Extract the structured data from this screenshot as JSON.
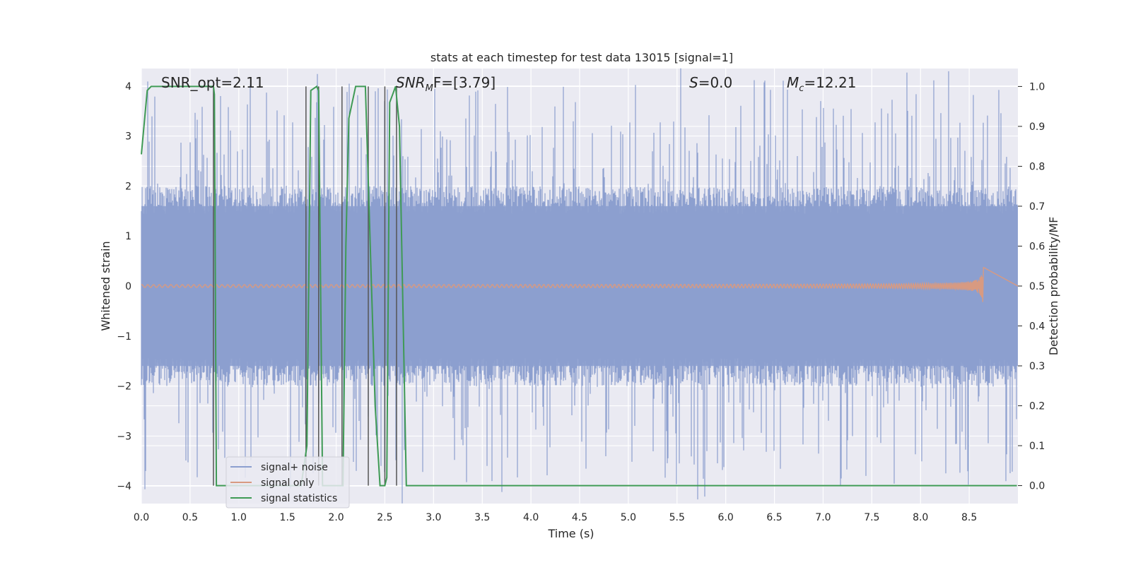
{
  "chart_data": {
    "type": "line",
    "title": "stats at each timestep for test data 13015 [signal=1]",
    "xlabel": "Time (s)",
    "ylabel": "Whitened strain",
    "ylabel_right": "Detection probability/MF",
    "xlim": [
      0.0,
      9.0
    ],
    "ylim": [
      -4.35,
      4.35
    ],
    "ylim_right": [
      -0.045,
      1.045
    ],
    "xticks": [
      "0.0",
      "0.5",
      "1.0",
      "1.5",
      "2.0",
      "2.5",
      "3.0",
      "3.5",
      "4.0",
      "4.5",
      "5.0",
      "5.5",
      "6.0",
      "6.5",
      "7.0",
      "7.5",
      "8.0",
      "8.5"
    ],
    "yticks": [
      "4",
      "3",
      "2",
      "1",
      "0",
      "−1",
      "−2",
      "−3",
      "−4"
    ],
    "yticks_right": [
      "1.0",
      "0.9",
      "0.8",
      "0.7",
      "0.6",
      "0.5",
      "0.4",
      "0.3",
      "0.2",
      "0.1",
      "0.0"
    ],
    "grid": true,
    "legend_placement": "lower-left",
    "annotations": {
      "snr_opt": "SNR_opt=2.11",
      "snr_mf_main": "SNR",
      "snr_mf_sub": "M",
      "snr_mf_rest": "F=[3.79]",
      "s_main": "S",
      "s_rest": "=0.0",
      "mc_main": "M",
      "mc_sub": "c",
      "mc_rest": "=12.21"
    },
    "series": [
      {
        "name": "signal+ noise",
        "color": "#8c9fcf",
        "kind": "noise",
        "amplitude_core": 1.6,
        "amplitude_peak": 4.0
      },
      {
        "name": "signal only",
        "color": "#d89a81",
        "kind": "chirp",
        "chirp_end_x": 8.65,
        "chirp_peak_amplitude": 0.45
      },
      {
        "name": "signal statistics",
        "color": "#3f9a55",
        "axis": "right",
        "x": [
          0.0,
          0.06,
          0.1,
          0.5,
          0.74,
          0.75,
          0.77,
          1.64,
          1.7,
          1.74,
          1.8,
          1.82,
          1.86,
          2.05,
          2.07,
          2.1,
          2.13,
          2.2,
          2.3,
          2.4,
          2.45,
          2.5,
          2.52,
          2.55,
          2.58,
          2.61,
          2.65,
          2.72,
          2.9,
          6.0,
          6.3,
          8.8,
          8.99
        ],
        "values": [
          0.83,
          0.99,
          1.0,
          1.0,
          1.0,
          0.98,
          0.0,
          0.0,
          0.1,
          0.99,
          1.0,
          0.99,
          0.0,
          0.0,
          0.0,
          0.6,
          0.92,
          1.0,
          1.0,
          0.2,
          0.0,
          0.0,
          0.02,
          0.96,
          0.98,
          1.0,
          0.9,
          0.0,
          0.0,
          0.0,
          0.0,
          0.0,
          0.0
        ]
      }
    ],
    "vertical_lines_x": [
      0.74,
      1.69,
      1.82,
      2.06,
      2.33,
      2.5,
      2.62
    ],
    "vertical_lines_color": "#555555"
  }
}
